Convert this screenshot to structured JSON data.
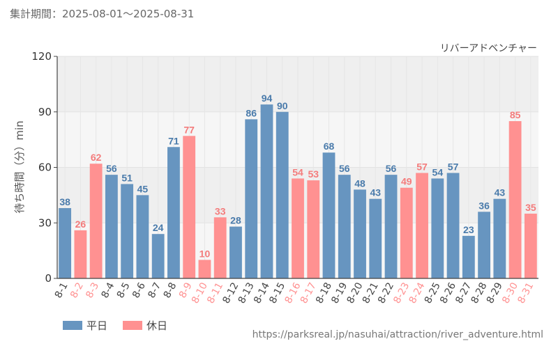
{
  "header": {
    "period_label": "集計期間：2025-08-01～2025-08-31"
  },
  "footer": {
    "source_url": "https://parksreal.jp/nasuhai/attraction/river_adventure.html"
  },
  "colors": {
    "weekday": "#6795c0",
    "holiday": "#ff9191",
    "weekday_text": "#4a7bab",
    "holiday_text": "#f47b7b",
    "plot_band_light": "#f6f6f6",
    "plot_band_dark": "#efefef"
  },
  "chart_data": {
    "type": "bar",
    "title": "リバーアドベンチャー",
    "ylabel": "待ち時間（分）min",
    "xlabel": "",
    "ylim": [
      0,
      120
    ],
    "yticks": [
      0,
      30,
      60,
      90,
      120
    ],
    "grid": true,
    "legend_position": "bottom-left",
    "legend": [
      {
        "key": "weekday",
        "label": "平日"
      },
      {
        "key": "holiday",
        "label": "休日"
      }
    ],
    "categories": [
      "8-1",
      "8-2",
      "8-3",
      "8-4",
      "8-5",
      "8-6",
      "8-7",
      "8-8",
      "8-9",
      "8-10",
      "8-11",
      "8-12",
      "8-13",
      "8-14",
      "8-15",
      "8-16",
      "8-17",
      "8-18",
      "8-19",
      "8-20",
      "8-21",
      "8-22",
      "8-23",
      "8-24",
      "8-25",
      "8-26",
      "8-27",
      "8-28",
      "8-29",
      "8-30",
      "8-31"
    ],
    "values": [
      38,
      26,
      62,
      56,
      51,
      45,
      24,
      71,
      77,
      10,
      33,
      28,
      86,
      94,
      90,
      54,
      53,
      68,
      56,
      48,
      43,
      56,
      49,
      57,
      54,
      57,
      23,
      36,
      43,
      85,
      35
    ],
    "day_type": [
      "weekday",
      "holiday",
      "holiday",
      "weekday",
      "weekday",
      "weekday",
      "weekday",
      "weekday",
      "holiday",
      "holiday",
      "holiday",
      "weekday",
      "weekday",
      "weekday",
      "weekday",
      "holiday",
      "holiday",
      "weekday",
      "weekday",
      "weekday",
      "weekday",
      "weekday",
      "holiday",
      "holiday",
      "weekday",
      "weekday",
      "weekday",
      "weekday",
      "weekday",
      "holiday",
      "holiday"
    ]
  }
}
